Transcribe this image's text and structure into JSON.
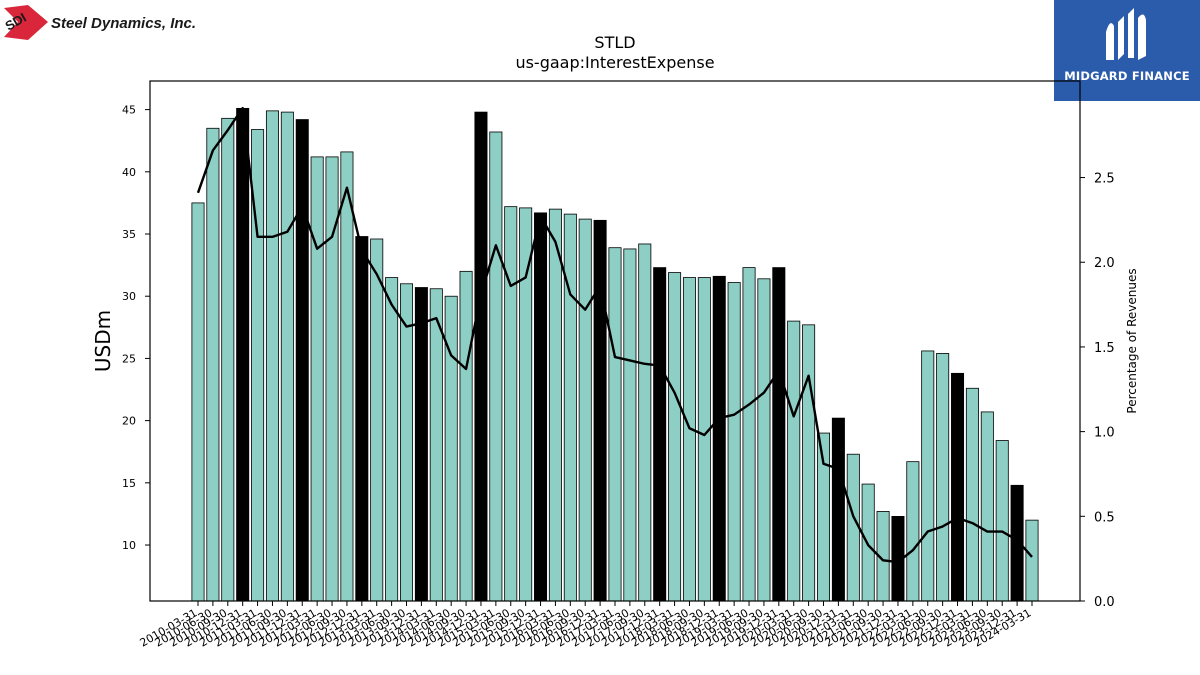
{
  "header": {
    "logo_text": "Steel Dynamics, Inc.",
    "logo_badge": "SDI",
    "brand_name": "MIDGARD FINANCE"
  },
  "colors": {
    "bar_default": "#8ecfc5",
    "bar_highlight": "#000000",
    "line": "#000000",
    "brand_bg": "#2b5bab",
    "logo_red": "#d9263a"
  },
  "chart_data": {
    "type": "bar",
    "title": "STLD",
    "subtitle": "us-gaap:InterestExpense",
    "ylabel": "USDm",
    "y2label": "Percentage of Revenues",
    "ylim": [
      5.5,
      47.3
    ],
    "y2lim": [
      0.0,
      3.07
    ],
    "yticks": [
      10,
      15,
      20,
      25,
      30,
      35,
      40,
      45
    ],
    "y2ticks": [
      0.0,
      0.5,
      1.0,
      1.5,
      2.0,
      2.5
    ],
    "y2tick_labels": [
      "0.0",
      "0.5",
      "1.0",
      "1.5",
      "2.0",
      "2.5"
    ],
    "categories": [
      "2010-03-31",
      "2010-06-30",
      "2010-09-30",
      "2010-12-31",
      "2011-03-31",
      "2011-06-30",
      "2011-09-30",
      "2011-12-31",
      "2012-03-31",
      "2012-06-30",
      "2012-09-30",
      "2012-12-31",
      "2013-03-31",
      "2013-06-30",
      "2013-09-30",
      "2013-12-31",
      "2014-03-31",
      "2014-06-30",
      "2014-09-30",
      "2014-12-31",
      "2015-03-31",
      "2015-06-30",
      "2015-09-30",
      "2015-12-31",
      "2016-03-31",
      "2016-06-30",
      "2016-09-30",
      "2016-12-31",
      "2017-03-31",
      "2017-06-30",
      "2017-09-30",
      "2017-12-31",
      "2018-03-31",
      "2018-06-30",
      "2018-09-30",
      "2018-12-31",
      "2019-03-31",
      "2019-06-30",
      "2019-09-30",
      "2019-12-31",
      "2020-03-31",
      "2020-06-30",
      "2020-09-30",
      "2020-12-31",
      "2021-03-31",
      "2021-06-30",
      "2021-09-30",
      "2021-12-31",
      "2022-03-31",
      "2022-06-30",
      "2022-09-30",
      "2022-12-31",
      "2023-03-31",
      "2023-06-30",
      "2023-09-30",
      "2023-12-31",
      "2024-03-31"
    ],
    "series": [
      {
        "values": [
          37.5,
          43.5,
          44.3,
          45.1,
          43.4,
          44.9,
          44.8,
          44.2,
          41.2,
          41.2,
          41.6,
          34.8,
          34.6,
          31.5,
          31.0,
          30.7,
          30.6,
          30.0,
          32.0,
          44.8,
          43.2,
          37.2,
          37.1,
          36.7,
          37.0,
          36.6,
          36.2,
          36.1,
          33.9,
          33.8,
          34.2,
          32.3,
          31.9,
          31.5,
          31.5,
          31.6,
          31.1,
          32.3,
          31.4,
          32.3,
          28.0,
          27.7,
          19.0,
          20.2,
          17.3,
          14.9,
          12.7,
          12.3,
          16.7,
          25.6,
          25.4,
          23.8,
          22.6,
          20.7,
          18.4,
          14.8,
          12.0
        ],
        "highlight": [
          3,
          7,
          11,
          15,
          19,
          23,
          27,
          31,
          35,
          39,
          43,
          47,
          51,
          55
        ]
      },
      {
        "axis": "right",
        "values": [
          2.41,
          2.66,
          2.78,
          2.91,
          2.15,
          2.15,
          2.18,
          2.33,
          2.08,
          2.15,
          2.44,
          2.07,
          1.93,
          1.75,
          1.62,
          1.64,
          1.67,
          1.45,
          1.37,
          1.81,
          2.1,
          1.86,
          1.91,
          2.27,
          2.12,
          1.81,
          1.72,
          1.86,
          1.44,
          1.42,
          1.4,
          1.39,
          1.23,
          1.02,
          0.98,
          1.08,
          1.1,
          1.16,
          1.23,
          1.36,
          1.09,
          1.33,
          0.81,
          0.78,
          0.5,
          0.33,
          0.24,
          0.23,
          0.3,
          0.41,
          0.44,
          0.49,
          0.46,
          0.41,
          0.41,
          0.36,
          0.26
        ]
      }
    ]
  }
}
